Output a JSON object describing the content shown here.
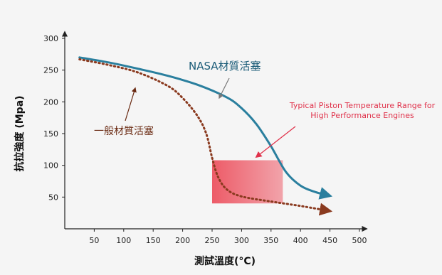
{
  "chart_data": {
    "type": "line",
    "title": "",
    "xlabel": "測試溫度(°C)",
    "ylabel": "抗拉強度 (Mpa)",
    "xlim": [
      0,
      500
    ],
    "ylim": [
      0,
      300
    ],
    "xticks": [
      50,
      100,
      150,
      200,
      250,
      300,
      350,
      400,
      450,
      500
    ],
    "yticks": [
      50,
      100,
      150,
      200,
      250,
      300
    ],
    "grid": false,
    "series": [
      {
        "name": "NASA材質活塞",
        "color": "#2a7f9e",
        "style": "solid",
        "x": [
          25,
          75,
          125,
          175,
          225,
          275,
          300,
          325,
          350,
          375,
          400,
          425,
          450
        ],
        "y": [
          270,
          262,
          252,
          241,
          227,
          207,
          190,
          165,
          130,
          90,
          68,
          58,
          52
        ]
      },
      {
        "name": "一般材質活塞",
        "color": "#8a3a1f",
        "style": "dotted",
        "x": [
          25,
          75,
          125,
          175,
          200,
          225,
          240,
          250,
          260,
          275,
          300,
          350,
          400,
          450
        ],
        "y": [
          267,
          258,
          246,
          225,
          206,
          178,
          150,
          112,
          82,
          62,
          51,
          43,
          36,
          28
        ]
      }
    ],
    "shaded_region": {
      "label": "Typical Piston Temperature Range for High Performance Engines",
      "label_lines": [
        "Typical Piston Temperature Range for",
        "High Performance Engines"
      ],
      "x_range": [
        250,
        370
      ],
      "y_range": [
        40,
        108
      ],
      "color": "#ee5a66"
    }
  }
}
